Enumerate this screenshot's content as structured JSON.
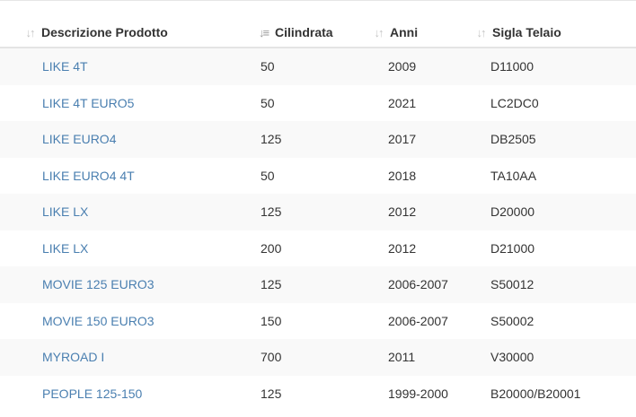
{
  "table": {
    "columns": [
      {
        "label": "Descrizione Prodotto",
        "sort_icon": "sort-icon"
      },
      {
        "label": "Cilindrata",
        "sort_icon": "sort-descending-icon"
      },
      {
        "label": "Anni",
        "sort_icon": "sort-icon"
      },
      {
        "label": "Sigla Telaio",
        "sort_icon": "sort-icon"
      }
    ],
    "rows": [
      {
        "product": "LIKE 4T",
        "cc": "50",
        "years": "2009",
        "frame": "D11000"
      },
      {
        "product": "LIKE 4T EURO5",
        "cc": "50",
        "years": "2021",
        "frame": "LC2DC0"
      },
      {
        "product": "LIKE EURO4",
        "cc": "125",
        "years": "2017",
        "frame": "DB2505"
      },
      {
        "product": "LIKE EURO4 4T",
        "cc": "50",
        "years": "2018",
        "frame": "TA10AA"
      },
      {
        "product": "LIKE LX",
        "cc": "125",
        "years": "2012",
        "frame": "D20000"
      },
      {
        "product": "LIKE LX",
        "cc": "200",
        "years": "2012",
        "frame": "D21000"
      },
      {
        "product": "MOVIE 125 EURO3",
        "cc": "125",
        "years": "2006-2007",
        "frame": "S50012"
      },
      {
        "product": "MOVIE 150 EURO3",
        "cc": "150",
        "years": "2006-2007",
        "frame": "S50002"
      },
      {
        "product": "MYROAD I",
        "cc": "700",
        "years": "2011",
        "frame": "V30000"
      },
      {
        "product": "PEOPLE 125-150",
        "cc": "125",
        "years": "1999-2000",
        "frame": "B20000/B20001"
      }
    ],
    "colors": {
      "link": "#4a7fb0",
      "stripe": "#f9f9f9",
      "text": "#333333"
    }
  }
}
